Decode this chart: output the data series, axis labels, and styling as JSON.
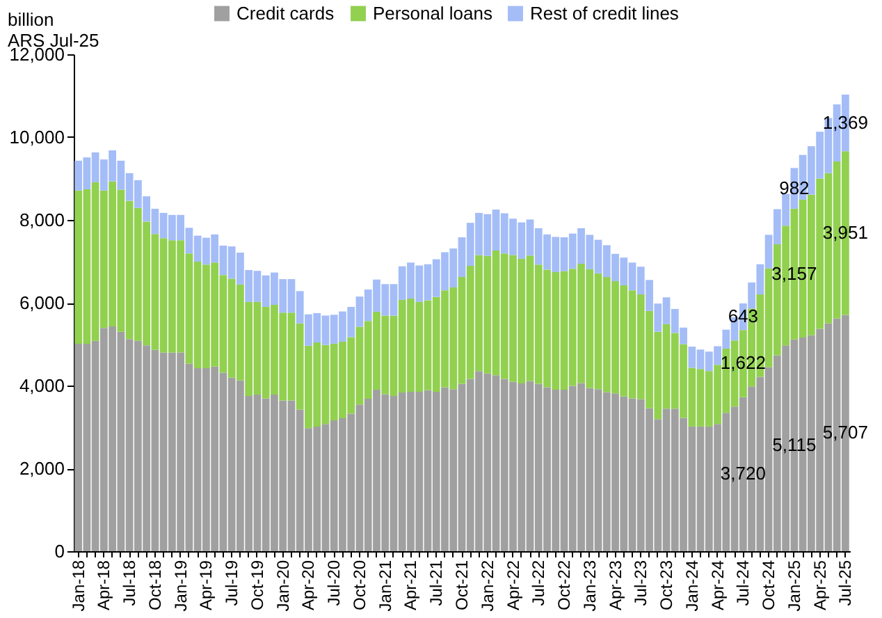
{
  "chart_data": {
    "type": "bar",
    "stacked": true,
    "ylabel": "billion\nARS Jul-25",
    "categories": [
      "Jan-18",
      null,
      null,
      "Apr-18",
      null,
      null,
      "Jul-18",
      null,
      null,
      "Oct-18",
      null,
      null,
      "Jan-19",
      null,
      null,
      "Apr-19",
      null,
      null,
      "Jul-19",
      null,
      null,
      "Oct-19",
      null,
      null,
      "Jan-20",
      null,
      null,
      "Apr-20",
      null,
      null,
      "Jul-20",
      null,
      null,
      "Oct-20",
      null,
      null,
      "Jan-21",
      null,
      null,
      "Apr-21",
      null,
      null,
      "Jul-21",
      null,
      null,
      "Oct-21",
      null,
      null,
      "Jan-22",
      null,
      null,
      "Apr-22",
      null,
      null,
      "Jul-22",
      null,
      null,
      "Oct-22",
      null,
      null,
      "Jan-23",
      null,
      null,
      "Apr-23",
      null,
      null,
      "Jul-23",
      null,
      null,
      "Oct-23",
      null,
      null,
      "Jan-24",
      null,
      null,
      "Apr-24",
      null,
      null,
      "Jul-24",
      null,
      null,
      "Oct-24",
      null,
      null,
      "Jan-25",
      null,
      null,
      "Apr-25",
      null,
      null,
      "Jul-25"
    ],
    "series": [
      {
        "name": "Credit cards",
        "color": "#a0a0a0",
        "values": [
          5010,
          5010,
          5080,
          5390,
          5430,
          5300,
          5120,
          5080,
          4970,
          4860,
          4800,
          4800,
          4800,
          4530,
          4420,
          4420,
          4460,
          4310,
          4190,
          4120,
          3750,
          3780,
          3690,
          3780,
          3640,
          3640,
          3420,
          2970,
          3010,
          3070,
          3160,
          3210,
          3320,
          3540,
          3680,
          3900,
          3790,
          3750,
          3830,
          3850,
          3850,
          3890,
          3850,
          3960,
          3910,
          4040,
          4160,
          4350,
          4290,
          4250,
          4160,
          4090,
          4050,
          4110,
          4040,
          3960,
          3900,
          3900,
          3990,
          4060,
          3940,
          3910,
          3840,
          3810,
          3740,
          3690,
          3670,
          3450,
          3190,
          3440,
          3440,
          3220,
          3010,
          3010,
          3010,
          3070,
          3340,
          3490,
          3720,
          3980,
          4210,
          4440,
          4730,
          4970,
          5115,
          5160,
          5220,
          5370,
          5500,
          5620,
          5707
        ],
        "value_labels": [
          null,
          null,
          null,
          null,
          null,
          null,
          null,
          null,
          null,
          null,
          null,
          null,
          null,
          null,
          null,
          null,
          null,
          null,
          null,
          null,
          null,
          null,
          null,
          null,
          null,
          null,
          null,
          null,
          null,
          null,
          null,
          null,
          null,
          null,
          null,
          null,
          null,
          null,
          null,
          null,
          null,
          null,
          null,
          null,
          null,
          null,
          null,
          null,
          null,
          null,
          null,
          null,
          null,
          null,
          null,
          null,
          null,
          null,
          null,
          null,
          null,
          null,
          null,
          null,
          null,
          null,
          null,
          null,
          null,
          null,
          null,
          null,
          null,
          null,
          null,
          null,
          null,
          null,
          "3,720",
          null,
          null,
          null,
          null,
          null,
          "5,115",
          null,
          null,
          null,
          null,
          null,
          "5,707"
        ]
      },
      {
        "name": "Personal loans",
        "color": "#92d050",
        "values": [
          3700,
          3730,
          3830,
          3320,
          3500,
          3430,
          3340,
          3210,
          2990,
          2800,
          2760,
          2710,
          2710,
          2660,
          2570,
          2500,
          2510,
          2360,
          2390,
          2320,
          2270,
          2240,
          2210,
          2170,
          2120,
          2120,
          2080,
          1990,
          2030,
          1910,
          1850,
          1850,
          1850,
          1880,
          1880,
          1880,
          1900,
          1940,
          2240,
          2250,
          2170,
          2170,
          2290,
          2340,
          2460,
          2580,
          2730,
          2800,
          2840,
          3010,
          3030,
          3060,
          3010,
          3030,
          2880,
          2840,
          2840,
          2860,
          2830,
          2880,
          2870,
          2800,
          2780,
          2710,
          2680,
          2610,
          2530,
          2350,
          2110,
          2040,
          1830,
          1780,
          1420,
          1390,
          1340,
          1430,
          1550,
          1600,
          1622,
          1880,
          1990,
          2390,
          2680,
          2890,
          3157,
          3330,
          3390,
          3630,
          3630,
          3790,
          3951
        ],
        "value_labels": [
          null,
          null,
          null,
          null,
          null,
          null,
          null,
          null,
          null,
          null,
          null,
          null,
          null,
          null,
          null,
          null,
          null,
          null,
          null,
          null,
          null,
          null,
          null,
          null,
          null,
          null,
          null,
          null,
          null,
          null,
          null,
          null,
          null,
          null,
          null,
          null,
          null,
          null,
          null,
          null,
          null,
          null,
          null,
          null,
          null,
          null,
          null,
          null,
          null,
          null,
          null,
          null,
          null,
          null,
          null,
          null,
          null,
          null,
          null,
          null,
          null,
          null,
          null,
          null,
          null,
          null,
          null,
          null,
          null,
          null,
          null,
          null,
          null,
          null,
          null,
          null,
          null,
          null,
          "1,622",
          null,
          null,
          null,
          null,
          null,
          "3,157",
          null,
          null,
          null,
          null,
          null,
          "3,951"
        ]
      },
      {
        "name": "Rest of credit lines",
        "color": "#a4bdf7",
        "values": [
          720,
          770,
          720,
          750,
          750,
          700,
          670,
          670,
          610,
          610,
          610,
          610,
          610,
          620,
          630,
          650,
          680,
          710,
          780,
          770,
          770,
          750,
          760,
          780,
          810,
          810,
          780,
          760,
          710,
          710,
          700,
          730,
          730,
          730,
          760,
          780,
          760,
          760,
          810,
          870,
          880,
          870,
          910,
          920,
          940,
          960,
          1040,
          1020,
          1010,
          990,
          970,
          880,
          880,
          870,
          880,
          850,
          850,
          820,
          850,
          860,
          830,
          810,
          770,
          660,
          670,
          670,
          670,
          750,
          680,
          650,
          580,
          400,
          510,
          470,
          470,
          450,
          460,
          560,
          643,
          630,
          730,
          810,
          850,
          770,
          982,
          1080,
          1170,
          1130,
          1330,
          1380,
          1369
        ],
        "value_labels": [
          null,
          null,
          null,
          null,
          null,
          null,
          null,
          null,
          null,
          null,
          null,
          null,
          null,
          null,
          null,
          null,
          null,
          null,
          null,
          null,
          null,
          null,
          null,
          null,
          null,
          null,
          null,
          null,
          null,
          null,
          null,
          null,
          null,
          null,
          null,
          null,
          null,
          null,
          null,
          null,
          null,
          null,
          null,
          null,
          null,
          null,
          null,
          null,
          null,
          null,
          null,
          null,
          null,
          null,
          null,
          null,
          null,
          null,
          null,
          null,
          null,
          null,
          null,
          null,
          null,
          null,
          null,
          null,
          null,
          null,
          null,
          null,
          null,
          null,
          null,
          null,
          null,
          null,
          "643",
          null,
          null,
          null,
          null,
          null,
          "982",
          null,
          null,
          null,
          null,
          null,
          "1,369"
        ]
      }
    ],
    "ylim": [
      0,
      12000
    ],
    "yticks": [
      0,
      {
        "value": 2000,
        "label": "2,000"
      },
      {
        "value": 4000,
        "label": "4,000"
      },
      {
        "value": 6000,
        "label": "6,000"
      },
      {
        "value": 8000,
        "label": "8,000"
      },
      {
        "value": 10000,
        "label": "10,000"
      },
      {
        "value": 12000,
        "label": "12,000"
      }
    ],
    "grid": false,
    "legend": "top"
  }
}
